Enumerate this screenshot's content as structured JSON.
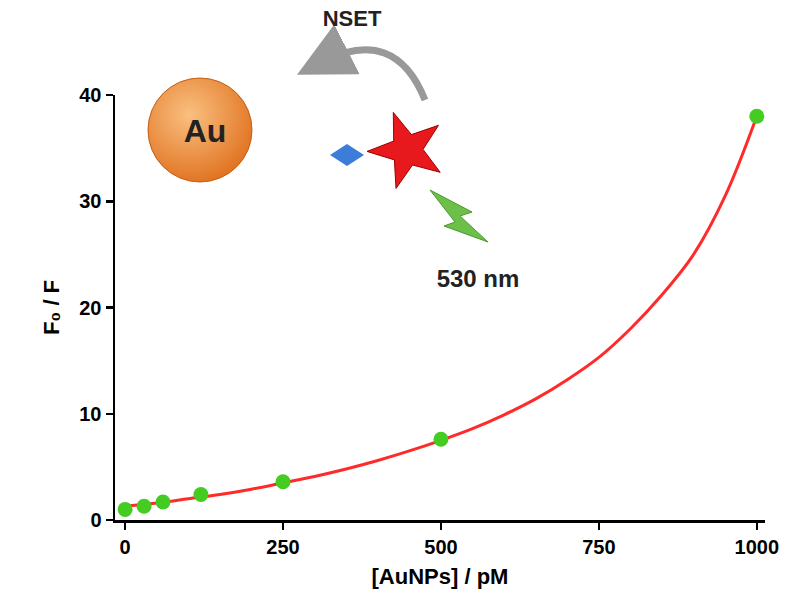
{
  "chart_data": {
    "type": "scatter",
    "x_label": "[AuNPs] / pM",
    "y_label": "F₀ / F",
    "xlim": [
      -16,
      1013
    ],
    "ylim": [
      0,
      40
    ],
    "xticks": [
      0,
      250,
      500,
      750,
      1000
    ],
    "yticks": [
      0,
      10,
      20,
      30,
      40
    ],
    "grid": false,
    "annotations": [
      "NSET",
      "Au",
      "530 nm"
    ],
    "series": [
      {
        "type": "line",
        "color": "#ff2a2a",
        "line_style": "solid",
        "x": [
          0,
          50,
          100,
          150,
          200,
          250,
          300,
          350,
          400,
          450,
          500,
          550,
          600,
          650,
          700,
          750,
          800,
          850,
          900,
          950,
          1000
        ],
        "values": [
          1.3,
          1.6,
          2.0,
          2.4,
          2.9,
          3.5,
          4.1,
          4.8,
          5.6,
          6.5,
          7.5,
          8.6,
          9.9,
          11.4,
          13.2,
          15.3,
          18.0,
          21.2,
          25.0,
          30.5,
          38.0
        ]
      },
      {
        "type": "scatter",
        "color": "#44cc22",
        "marker": "circle",
        "x": [
          0,
          30,
          60,
          120,
          250,
          500,
          1000
        ],
        "values": [
          1.0,
          1.3,
          1.7,
          2.4,
          3.6,
          7.6,
          38.0
        ]
      }
    ]
  }
}
